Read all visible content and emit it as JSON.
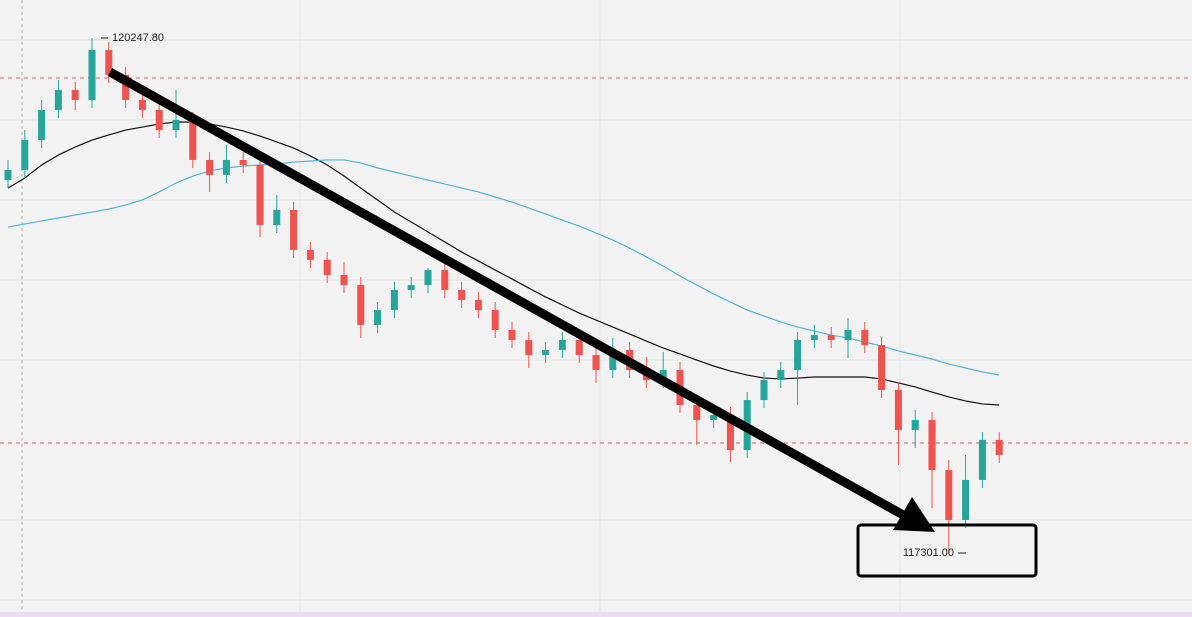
{
  "chart_data": {
    "type": "candlestick",
    "open": [
      119435,
      119493,
      119664,
      119836,
      119950,
      119893,
      120179,
      120036,
      119893,
      119836,
      119721,
      119779,
      119550,
      119464,
      119550,
      119521,
      119178,
      119264,
      119035,
      118978,
      118892,
      118834,
      118606,
      118691,
      118806,
      118834,
      118920,
      118806,
      118749,
      118691,
      118577,
      118520,
      118434,
      118463,
      118520,
      118434,
      118348,
      118463,
      118348,
      118291,
      118348,
      118148,
      118062,
      118091,
      117890,
      118176,
      118291,
      118348,
      118520,
      118548,
      118520,
      118577,
      118491,
      118234,
      118005,
      118062,
      117776,
      117490,
      117719,
      117948
    ],
    "high": [
      119550,
      119721,
      119893,
      120007,
      119996,
      120247.8,
      120225,
      120082,
      119939,
      119893,
      119950,
      119824,
      119596,
      119636,
      119596,
      119567,
      119349,
      119309,
      119081,
      119023,
      118966,
      118880,
      118737,
      118852,
      118880,
      118932,
      118966,
      118852,
      118794,
      118737,
      118623,
      118566,
      118508,
      118566,
      118566,
      118480,
      118531,
      118508,
      118422,
      118451,
      118394,
      118194,
      118136,
      118136,
      118222,
      118337,
      118394,
      118566,
      118606,
      118594,
      118646,
      118623,
      118537,
      118279,
      118119,
      118108,
      117833,
      117862,
      117993,
      117993
    ],
    "low": [
      119390,
      119447,
      119618,
      119790,
      119836,
      119847,
      119990,
      119847,
      119790,
      119676,
      119676,
      119504,
      119367,
      119418,
      119475,
      119109,
      119132,
      118989,
      118932,
      118846,
      118789,
      118531,
      118560,
      118646,
      118760,
      118789,
      118760,
      118703,
      118646,
      118531,
      118474,
      118360,
      118388,
      118417,
      118388,
      118274,
      118302,
      118302,
      118245,
      118245,
      118102,
      117919,
      118016,
      117822,
      117845,
      118131,
      118245,
      118148,
      118474,
      118474,
      118417,
      118445,
      118188,
      117805,
      117902,
      117558,
      117301,
      117444,
      117673,
      117816
    ],
    "close": [
      119493,
      119664,
      119836,
      119950,
      119893,
      120179,
      120036,
      119893,
      119836,
      119721,
      119779,
      119550,
      119464,
      119550,
      119521,
      119178,
      119264,
      119035,
      118978,
      118892,
      118834,
      118606,
      118691,
      118806,
      118834,
      118920,
      118806,
      118749,
      118691,
      118577,
      118520,
      118434,
      118463,
      118520,
      118434,
      118348,
      118463,
      118348,
      118291,
      118348,
      118148,
      118062,
      118091,
      117890,
      118176,
      118291,
      118348,
      118520,
      118548,
      118520,
      118577,
      118491,
      118234,
      118005,
      118062,
      117776,
      117490,
      117719,
      117948,
      117862
    ],
    "up_color": "#26a69a",
    "down_color": "#ef5350",
    "lines": [
      {
        "color": "#111111",
        "values": [
          119389,
          119447,
          119521,
          119578,
          119624,
          119664,
          119693,
          119721,
          119738,
          119756,
          119767,
          119767,
          119756,
          119738,
          119716,
          119687,
          119653,
          119618,
          119573,
          119521,
          119458,
          119389,
          119321,
          119252,
          119195,
          119138,
          119081,
          119023,
          118972,
          118920,
          118869,
          118817,
          118766,
          118720,
          118674,
          118634,
          118594,
          118554,
          118514,
          118474,
          118440,
          118405,
          118371,
          118342,
          118319,
          118302,
          118297,
          118302,
          118308,
          118308,
          118308,
          118308,
          118297,
          118274,
          118251,
          118222,
          118194,
          118171,
          118154,
          118148
        ]
      },
      {
        "color": "#4fb3d9",
        "values": [
          119166,
          119184,
          119201,
          119218,
          119235,
          119252,
          119269,
          119292,
          119321,
          119367,
          119418,
          119458,
          119487,
          119504,
          119515,
          119521,
          119527,
          119538,
          119544,
          119550,
          119550,
          119533,
          119504,
          119481,
          119458,
          119435,
          119412,
          119389,
          119367,
          119338,
          119309,
          119275,
          119241,
          119206,
          119172,
          119132,
          119092,
          119046,
          118995,
          118943,
          118886,
          118834,
          118783,
          118737,
          118691,
          118657,
          118623,
          118594,
          118571,
          118548,
          118531,
          118508,
          118485,
          118457,
          118434,
          118411,
          118382,
          118360,
          118337,
          118319
        ]
      }
    ],
    "annotations": [
      {
        "value": 120247.8,
        "label": "120247.80"
      },
      {
        "value": 117301,
        "label": "117301.00"
      }
    ]
  }
}
